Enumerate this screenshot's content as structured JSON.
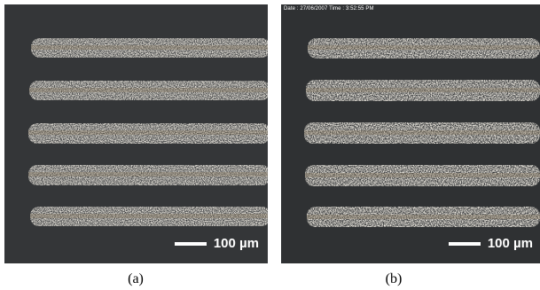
{
  "figure": {
    "panels": [
      {
        "id": "a",
        "caption": "(a)",
        "scale_bar_label": "100 µm",
        "timestamp": "",
        "lines": 5,
        "colors": {
          "background": "#343638",
          "line": "#e8e4dc"
        }
      },
      {
        "id": "b",
        "caption": "(b)",
        "scale_bar_label": "100 µm",
        "timestamp": "Date : 27/06/2007  Time : 3:52:55 PM",
        "lines": 5,
        "colors": {
          "background": "#2f3133",
          "line": "#ece8e0"
        }
      }
    ]
  }
}
